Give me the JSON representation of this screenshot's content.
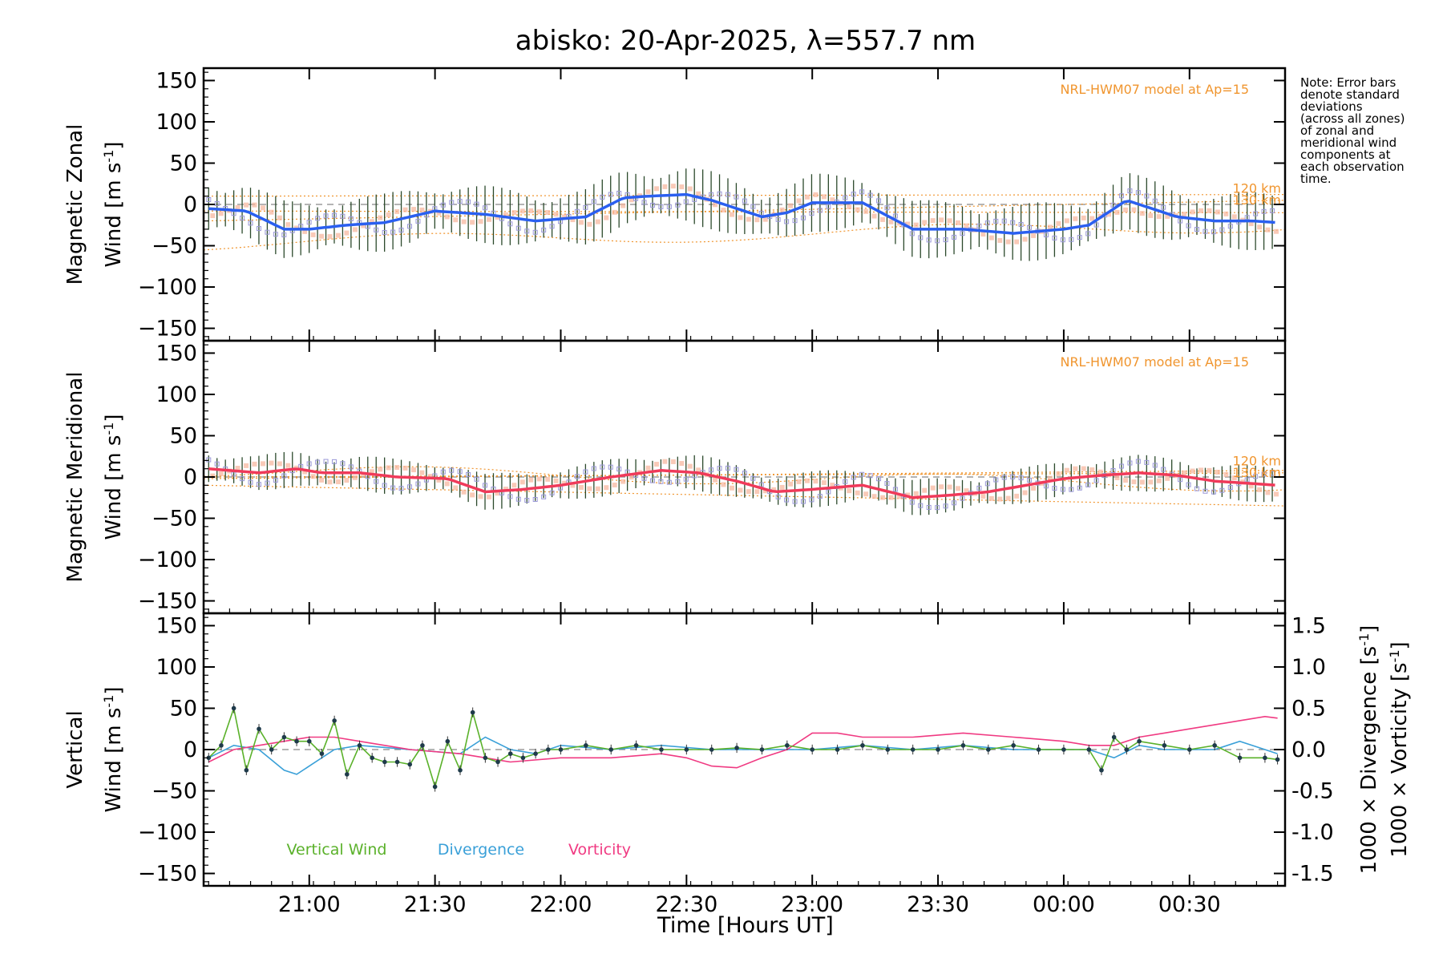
{
  "chart_data": {
    "type": "line",
    "title": "abisko: 20-Apr-2025, λ=557.7 nm",
    "note": [
      "Note: Error bars",
      "denote standard",
      "deviations",
      "(across all zones)",
      "of zonal and",
      "meridional wind",
      "components at",
      "each observation",
      "time."
    ],
    "xlabel": "Time [Hours UT]",
    "x_ticks": [
      "21:00",
      "21:30",
      "22:00",
      "22:30",
      "23:00",
      "23:30",
      "00:00",
      "00:30"
    ],
    "x_tick_hours": [
      21.0,
      21.5,
      22.0,
      22.5,
      23.0,
      23.5,
      24.0,
      24.5
    ],
    "xlim_hours": [
      20.58,
      24.88
    ],
    "y_ticks": [
      150,
      100,
      50,
      0,
      -50,
      -100,
      -150
    ],
    "ylim": [
      -165,
      165
    ],
    "colors": {
      "zonal": "#2a5ff0",
      "meridional": "#f03a5a",
      "model": "#f0952e",
      "vertical": "#5ab12a",
      "divergence": "#3aa0d8",
      "vorticity": "#f03a82",
      "errorbar": "#2c4a2c",
      "zone_markers": "#9a98d8"
    },
    "panels": [
      {
        "id": "zonal",
        "ylabel_line1": "Magnetic Zonal",
        "ylabel_line2": "Wind [m s",
        "sup": "-1",
        "close": "]",
        "model_label": "NRL-HWM07 model at Ap=15",
        "model_heights": [
          "120 km",
          "130 km"
        ],
        "series": [
          {
            "name": "",
            "x_hours": [
              20.6,
              20.75,
              20.9,
              21.0,
              21.15,
              21.3,
              21.5,
              21.7,
              21.9,
              22.1,
              22.25,
              22.35,
              22.5,
              22.6,
              22.8,
              22.9,
              23.0,
              23.2,
              23.4,
              23.6,
              23.8,
              24.0,
              24.1,
              24.25,
              24.35,
              24.45,
              24.6,
              24.75,
              24.85
            ],
            "values": [
              -5,
              -8,
              -30,
              -30,
              -25,
              -22,
              -8,
              -12,
              -20,
              -15,
              8,
              10,
              12,
              5,
              -15,
              -10,
              2,
              2,
              -30,
              -30,
              -35,
              -30,
              -25,
              5,
              -5,
              -15,
              -20,
              -20,
              -22
            ]
          }
        ]
      },
      {
        "id": "meridional",
        "ylabel_line1": "Magnetic Meridional",
        "ylabel_line2": "Wind [m s",
        "sup": "-1",
        "close": "]",
        "model_label": "NRL-HWM07 model at Ap=15",
        "model_heights": [
          "120 km",
          "130 km"
        ],
        "series": [
          {
            "name": "",
            "x_hours": [
              20.6,
              20.8,
              20.95,
              21.05,
              21.2,
              21.35,
              21.55,
              21.7,
              21.85,
              22.0,
              22.2,
              22.4,
              22.55,
              22.7,
              22.85,
              23.0,
              23.2,
              23.4,
              23.55,
              23.7,
              23.85,
              24.0,
              24.15,
              24.3,
              24.45,
              24.6,
              24.75,
              24.85
            ],
            "values": [
              10,
              5,
              10,
              5,
              5,
              0,
              -2,
              -18,
              -15,
              -10,
              0,
              8,
              5,
              -5,
              -18,
              -15,
              -10,
              -25,
              -22,
              -18,
              -10,
              -2,
              2,
              5,
              2,
              -5,
              -8,
              -10
            ]
          }
        ]
      },
      {
        "id": "vertical",
        "ylabel_line1": "Vertical",
        "ylabel_line2": "Wind [m s",
        "sup": "-1",
        "close": "]",
        "right_axis_ticks": [
          "1.5",
          "1.0",
          "0.5",
          "0.0",
          "-0.5",
          "-1.0",
          "-1.5"
        ],
        "right_axis_values": [
          1.5,
          1.0,
          0.5,
          0.0,
          -0.5,
          -1.0,
          -1.5
        ],
        "right_ylim": [
          -1.65,
          1.65
        ],
        "right_label_div": "1000 × Divergence [s",
        "right_label_vort": "1000 × Vorticity [s",
        "legend": [
          "Vertical Wind",
          "Divergence",
          "Vorticity"
        ],
        "series": [
          {
            "name": "Vertical Wind",
            "x_hours": [
              20.6,
              20.65,
              20.7,
              20.75,
              20.8,
              20.85,
              20.9,
              20.95,
              21.0,
              21.05,
              21.1,
              21.15,
              21.2,
              21.25,
              21.3,
              21.35,
              21.4,
              21.45,
              21.5,
              21.55,
              21.6,
              21.65,
              21.7,
              21.75,
              21.8,
              21.85,
              21.9,
              21.95,
              22.0,
              22.1,
              22.2,
              22.3,
              22.4,
              22.5,
              22.6,
              22.7,
              22.8,
              22.9,
              23.0,
              23.1,
              23.2,
              23.3,
              23.4,
              23.5,
              23.6,
              23.7,
              23.8,
              23.9,
              24.0,
              24.1,
              24.15,
              24.2,
              24.25,
              24.3,
              24.4,
              24.5,
              24.6,
              24.7,
              24.8,
              24.85
            ],
            "values": [
              -10,
              5,
              50,
              -25,
              25,
              0,
              15,
              10,
              10,
              -5,
              35,
              -30,
              5,
              -10,
              -15,
              -15,
              -18,
              5,
              -45,
              10,
              -25,
              45,
              -10,
              -15,
              -5,
              -10,
              -5,
              0,
              0,
              5,
              0,
              5,
              0,
              0,
              0,
              2,
              0,
              5,
              0,
              0,
              5,
              0,
              0,
              0,
              5,
              0,
              5,
              0,
              0,
              0,
              -25,
              15,
              0,
              10,
              5,
              0,
              5,
              -10,
              -10,
              -12
            ]
          },
          {
            "name": "Divergence",
            "x_hours": [
              20.6,
              20.7,
              20.8,
              20.9,
              20.95,
              21.0,
              21.1,
              21.2,
              21.4,
              21.6,
              21.7,
              21.8,
              21.9,
              22.0,
              22.2,
              22.4,
              22.6,
              22.8,
              23.0,
              23.2,
              23.4,
              23.6,
              23.8,
              24.0,
              24.1,
              24.2,
              24.3,
              24.4,
              24.5,
              24.6,
              24.7,
              24.8,
              24.85
            ],
            "values": [
              -0.1,
              0.05,
              0.0,
              -0.25,
              -0.3,
              -0.2,
              0.0,
              0.05,
              0.0,
              -0.05,
              0.15,
              0.0,
              -0.05,
              0.05,
              0.0,
              0.05,
              0.0,
              0.0,
              0.0,
              0.05,
              0.0,
              0.05,
              0.0,
              0.0,
              0.0,
              -0.1,
              0.05,
              0.0,
              0.0,
              0.0,
              0.1,
              0.0,
              -0.05
            ]
          },
          {
            "name": "Vorticity",
            "x_hours": [
              20.6,
              20.7,
              20.8,
              20.9,
              21.0,
              21.1,
              21.2,
              21.4,
              21.6,
              21.7,
              21.8,
              22.0,
              22.2,
              22.4,
              22.5,
              22.6,
              22.7,
              22.8,
              22.9,
              23.0,
              23.1,
              23.2,
              23.4,
              23.6,
              23.8,
              24.0,
              24.1,
              24.2,
              24.3,
              24.4,
              24.5,
              24.6,
              24.7,
              24.8,
              24.85
            ],
            "values": [
              -0.15,
              0.0,
              0.05,
              0.1,
              0.15,
              0.15,
              0.1,
              0.0,
              -0.05,
              -0.1,
              -0.15,
              -0.1,
              -0.1,
              -0.05,
              -0.1,
              -0.2,
              -0.22,
              -0.1,
              0.0,
              0.2,
              0.2,
              0.15,
              0.15,
              0.2,
              0.15,
              0.1,
              0.05,
              0.05,
              0.15,
              0.2,
              0.25,
              0.3,
              0.35,
              0.4,
              0.38
            ]
          }
        ]
      }
    ]
  }
}
